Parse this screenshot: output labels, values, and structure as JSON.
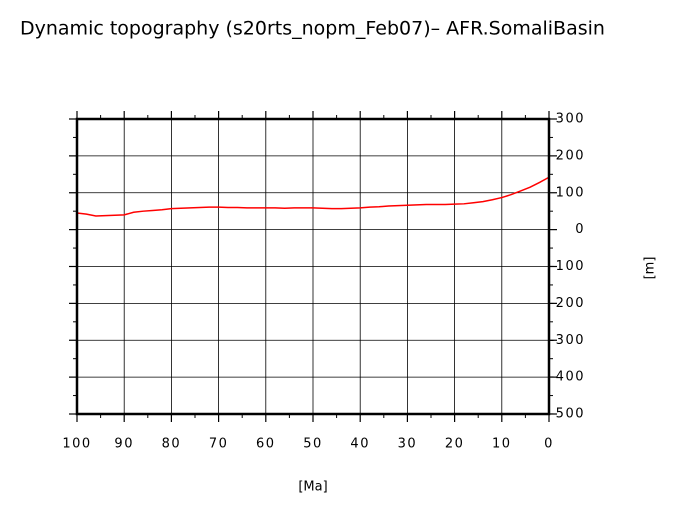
{
  "chart_data": {
    "type": "line",
    "title": "Dynamic topography (s20rts_nopm_Feb07)– AFR.SomaliBasin",
    "xlabel": "[Ma]",
    "ylabel": "[m]",
    "x": [
      100,
      98,
      96,
      94,
      92,
      90,
      88,
      86,
      84,
      82,
      80,
      78,
      76,
      74,
      72,
      70,
      68,
      66,
      64,
      62,
      60,
      58,
      56,
      54,
      52,
      50,
      48,
      46,
      44,
      42,
      40,
      38,
      36,
      34,
      32,
      30,
      28,
      26,
      24,
      22,
      20,
      18,
      16,
      14,
      12,
      10,
      8,
      6,
      4,
      2,
      0
    ],
    "series": [
      {
        "color": "#ff0000",
        "values": [
          45,
          42,
          37,
          38,
          39,
          40,
          47,
          50,
          52,
          54,
          57,
          58,
          59,
          60,
          61,
          61,
          60,
          60,
          59,
          59,
          59,
          59,
          58,
          59,
          59,
          59,
          58,
          57,
          57,
          58,
          59,
          61,
          62,
          64,
          65,
          66,
          67,
          68,
          68,
          68,
          69,
          70,
          73,
          76,
          81,
          87,
          95,
          105,
          115,
          128,
          142
        ]
      }
    ],
    "xlim": [
      100,
      0
    ],
    "xticks": [
      100,
      90,
      80,
      70,
      60,
      50,
      40,
      30,
      20,
      10,
      0
    ],
    "ylim": [
      -500,
      300
    ],
    "yticks": [
      -500,
      -400,
      -300,
      -200,
      -100,
      0,
      100,
      200,
      300
    ],
    "grid": true
  }
}
